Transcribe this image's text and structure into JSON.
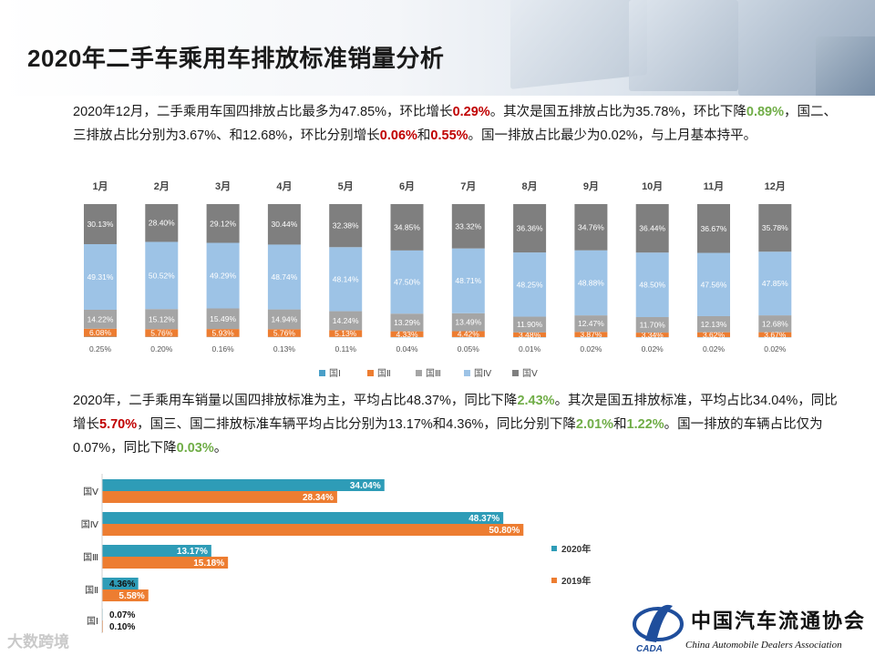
{
  "title": "2020年二手车乘用车排放标准销量分析",
  "paragraph1": {
    "p1": "2020年12月，二手乘用车国四排放占比最多为47.85%，环比增长",
    "h1": "0.29%",
    "p2": "。其次是国五排放占比为35.78%，环比下降",
    "h2": "0.89%",
    "p3": "，国二、三排放占比分别为3.67%、和12.68%，环比分别增长",
    "h3": "0.06%",
    "p4": "和",
    "h4": "0.55%",
    "p5": "。国一排放占比最少为0.02%，与上月基本持平。"
  },
  "paragraph2": {
    "p1": "2020年，二手乘用车销量以国四排放标准为主，平均占比48.37%，同比下降",
    "h1": "2.43%",
    "p2": "。其次是国五排放标准，平均占比34.04%，同比增长",
    "h2": "5.70%",
    "p3": "，国三、国二排放标准车辆平均占比分别为13.17%和4.36%，同比分别下降",
    "h3": "2.01%",
    "p4": "和",
    "h4": "1.22%",
    "p5": "。国一排放的车辆占比仅为0.07%，同比下降",
    "h5": "0.03%",
    "p6": "。"
  },
  "chart_data": [
    {
      "type": "bar",
      "stacked": true,
      "percent_stacked": true,
      "categories": [
        "1月",
        "2月",
        "3月",
        "4月",
        "5月",
        "6月",
        "7月",
        "8月",
        "9月",
        "10月",
        "11月",
        "12月"
      ],
      "series": [
        {
          "name": "国Ⅰ",
          "color": "#4a9fc8",
          "values": [
            0.25,
            0.2,
            0.16,
            0.13,
            0.11,
            0.04,
            0.05,
            0.01,
            0.02,
            0.02,
            0.02,
            0.02
          ]
        },
        {
          "name": "国Ⅱ",
          "color": "#ed7d31",
          "values": [
            6.08,
            5.76,
            5.93,
            5.76,
            5.13,
            4.33,
            4.42,
            3.48,
            3.87,
            3.34,
            3.62,
            3.67
          ]
        },
        {
          "name": "国Ⅲ",
          "color": "#a5a5a5",
          "values": [
            14.22,
            15.12,
            15.49,
            14.94,
            14.24,
            13.29,
            13.49,
            11.9,
            12.47,
            11.7,
            12.13,
            12.68
          ]
        },
        {
          "name": "国Ⅳ",
          "color": "#9dc3e6",
          "values": [
            49.31,
            50.52,
            49.29,
            48.74,
            48.14,
            47.5,
            48.71,
            48.25,
            48.88,
            48.5,
            47.56,
            47.85
          ]
        },
        {
          "name": "国Ⅴ",
          "color": "#7f7f7f",
          "values": [
            30.13,
            28.4,
            29.12,
            30.44,
            32.38,
            34.85,
            33.32,
            36.36,
            34.76,
            36.44,
            36.67,
            35.78
          ]
        }
      ],
      "value_labels": {
        "国Ⅰ": [
          "0.25%",
          "0.20%",
          "0.16%",
          "0.13%",
          "0.11%",
          "0.04%",
          "0.05%",
          "0.01%",
          "0.02%",
          "0.02%",
          "0.02%",
          "0.02%"
        ],
        "国Ⅱ": [
          "6.08%",
          "5.76%",
          "5.93%",
          "5.76%",
          "5.13%",
          "4.33%",
          "4.42%",
          "3.48%",
          "3.87%",
          "3.34%",
          "3.62%",
          "3.67%"
        ],
        "国Ⅲ": [
          "14.22%",
          "15.12%",
          "15.49%",
          "14.94%",
          "14.24%",
          "13.29%",
          "13.49%",
          "11.90%",
          "12.47%",
          "11.70%",
          "12.13%",
          "12.68%"
        ],
        "国Ⅳ": [
          "49.31%",
          "50.52%",
          "49.29%",
          "48.74%",
          "48.14%",
          "47.50%",
          "48.71%",
          "48.25%",
          "48.88%",
          "48.50%",
          "47.56%",
          "47.85%"
        ],
        "国Ⅴ": [
          "30.13%",
          "28.40%",
          "29.12%",
          "30.44%",
          "32.38%",
          "34.85%",
          "33.32%",
          "36.36%",
          "34.76%",
          "36.44%",
          "36.67%",
          "35.78%"
        ]
      },
      "legend": [
        "国Ⅰ",
        "国Ⅱ",
        "国Ⅲ",
        "国Ⅳ",
        "国Ⅴ"
      ],
      "legend_position": "bottom",
      "xaxis_position": "top",
      "ylim": [
        0,
        100
      ],
      "title": "",
      "xlabel": "",
      "ylabel": ""
    },
    {
      "type": "bar",
      "orientation": "horizontal",
      "categories": [
        "国Ⅴ",
        "国Ⅳ",
        "国Ⅲ",
        "国Ⅱ",
        "国Ⅰ"
      ],
      "series": [
        {
          "name": "2020年",
          "color": "#2e9cb7",
          "values": [
            34.04,
            48.37,
            13.17,
            4.36,
            0.07
          ],
          "labels": [
            "34.04%",
            "48.37%",
            "13.17%",
            "4.36%",
            "0.07%"
          ]
        },
        {
          "name": "2019年",
          "color": "#ed7d31",
          "values": [
            28.34,
            50.8,
            15.18,
            5.58,
            0.1
          ],
          "labels": [
            "28.34%",
            "50.80%",
            "15.18%",
            "5.58%",
            "0.10%"
          ]
        }
      ],
      "legend": [
        "2020年",
        "2019年"
      ],
      "legend_position": "right",
      "xlim": [
        0,
        55
      ],
      "title": "",
      "xlabel": "",
      "ylabel": ""
    }
  ],
  "logo": {
    "name_cn": "中国汽车流通协会",
    "name_en": "China Automobile Dealers Association",
    "abbr": "CADA"
  },
  "watermark": "大数跨境",
  "colors": {
    "highlight_red": "#c00000",
    "highlight_green": "#70ad47"
  }
}
